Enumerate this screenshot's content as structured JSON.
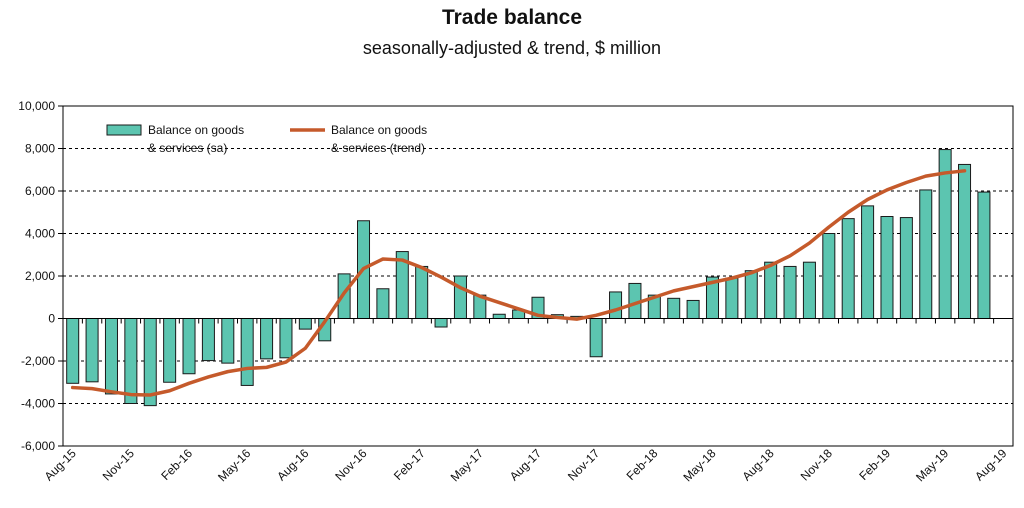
{
  "chart_data": {
    "type": "bar+line",
    "title": "Trade balance",
    "subtitle": "seasonally-adjusted & trend, $ million",
    "ylim": [
      -6000,
      10000
    ],
    "y_ticks": [
      "10,000",
      "8,000",
      "6,000",
      "4,000",
      "2,000",
      "0",
      "-2,000",
      "-4,000",
      "-6,000"
    ],
    "y_tick_values": [
      10000,
      8000,
      6000,
      4000,
      2000,
      0,
      -2000,
      -4000,
      -6000
    ],
    "grid": "dashed horizontal",
    "legend_position": "top-left",
    "x_tick_labels": [
      {
        "label": "Aug-15",
        "index": 0
      },
      {
        "label": "Nov-15",
        "index": 3
      },
      {
        "label": "Feb-16",
        "index": 6
      },
      {
        "label": "May-16",
        "index": 9
      },
      {
        "label": "Aug-16",
        "index": 12
      },
      {
        "label": "Nov-16",
        "index": 15
      },
      {
        "label": "Feb-17",
        "index": 18
      },
      {
        "label": "May-17",
        "index": 21
      },
      {
        "label": "Aug-17",
        "index": 24
      },
      {
        "label": "Nov-17",
        "index": 27
      },
      {
        "label": "Feb-18",
        "index": 30
      },
      {
        "label": "May-18",
        "index": 33
      },
      {
        "label": "Aug-18",
        "index": 36
      },
      {
        "label": "Nov-18",
        "index": 39
      },
      {
        "label": "Feb-19",
        "index": 42
      },
      {
        "label": "May-19",
        "index": 45
      },
      {
        "label": "Aug-19",
        "index": 48
      }
    ],
    "series": [
      {
        "name": "Balance on goods & services (sa)",
        "legend_lines": [
          "Balance on goods",
          "& services (sa)"
        ],
        "kind": "bar",
        "color": "#5cc5b0",
        "values": [
          -3050,
          -2980,
          -3550,
          -4000,
          -4100,
          -3000,
          -2600,
          -1980,
          -2100,
          -3150,
          -1900,
          -1850,
          -500,
          -1050,
          2100,
          4600,
          1400,
          3150,
          2450,
          -400,
          2000,
          1100,
          200,
          400,
          1000,
          180,
          100,
          -1800,
          1250,
          1650,
          1100,
          950,
          850,
          1950,
          1900,
          2250,
          2650,
          2450,
          2650,
          4000,
          4700,
          5300,
          4800,
          4750,
          6050,
          7950,
          7250,
          5950
        ]
      },
      {
        "name": "Balance on goods & services (trend)",
        "legend_lines": [
          "Balance on goods",
          "& services (trend)"
        ],
        "kind": "line",
        "color": "#c55a2b",
        "values": [
          -3250,
          -3300,
          -3450,
          -3580,
          -3600,
          -3400,
          -3050,
          -2750,
          -2500,
          -2350,
          -2300,
          -2050,
          -1400,
          -150,
          1200,
          2350,
          2800,
          2750,
          2400,
          1950,
          1450,
          1050,
          750,
          450,
          150,
          50,
          -30,
          150,
          400,
          700,
          1000,
          1300,
          1500,
          1700,
          1900,
          2150,
          2500,
          2950,
          3550,
          4300,
          5000,
          5600,
          6050,
          6400,
          6700,
          6850,
          6950
        ]
      }
    ]
  }
}
